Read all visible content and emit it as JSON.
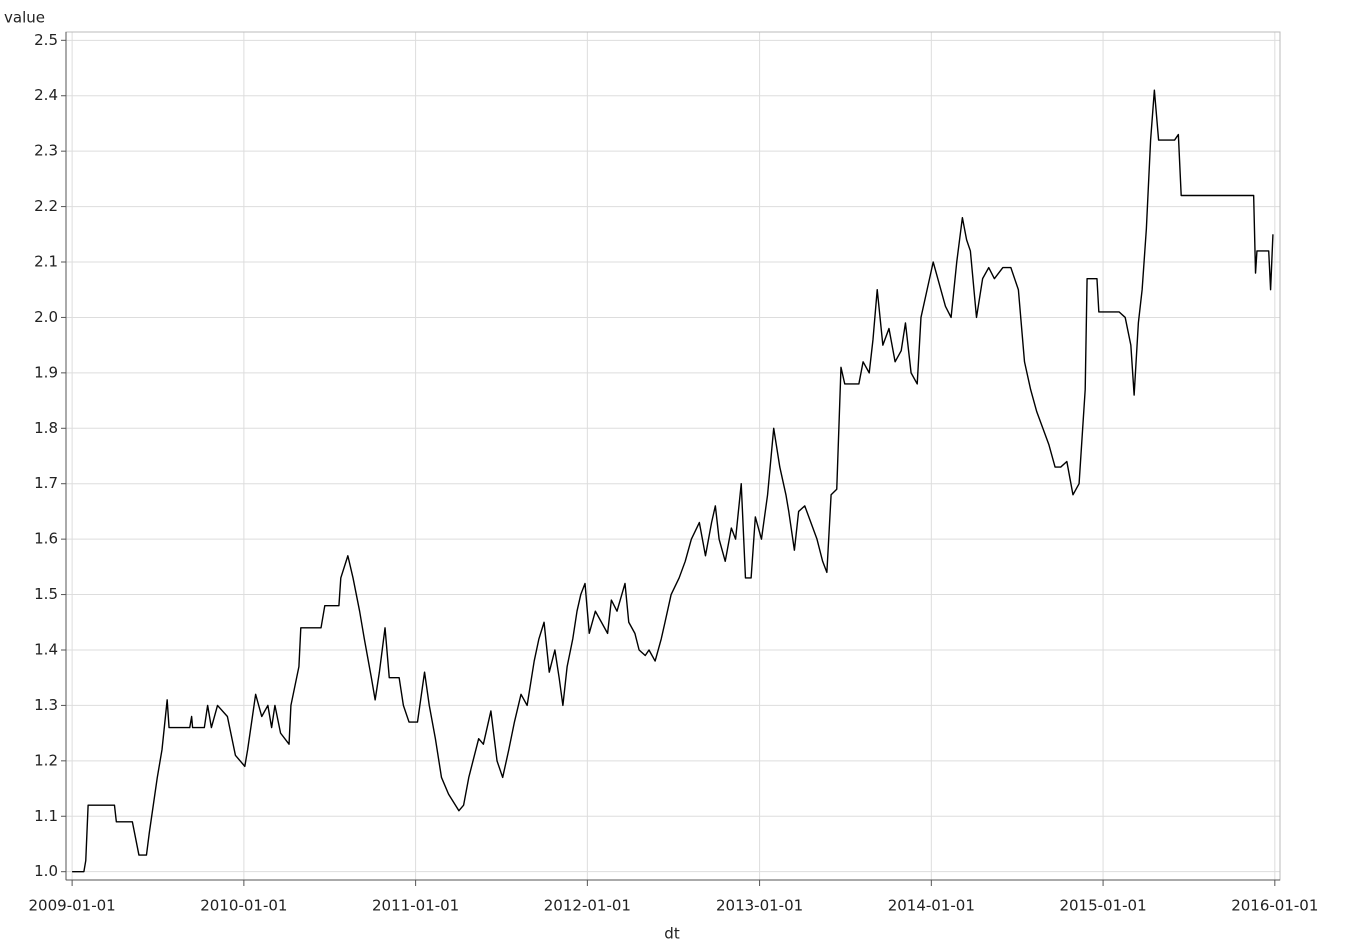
{
  "chart_data": {
    "type": "line",
    "y_label": "value",
    "x_label": "dt",
    "color": "#000000",
    "grid": true,
    "xlim": [
      "2008-12-19",
      "2016-01-12"
    ],
    "xticks": [
      "2009-01-01",
      "2010-01-01",
      "2011-01-01",
      "2012-01-01",
      "2013-01-01",
      "2014-01-01",
      "2015-01-01",
      "2016-01-01"
    ],
    "ylim": [
      0.985,
      2.515
    ],
    "yticks": [
      {
        "value": 1,
        "label": "1.0"
      },
      1.1,
      1.2,
      1.3,
      1.4,
      1.5,
      1.6,
      1.7,
      1.8,
      1.9,
      {
        "value": 2,
        "label": "2.0"
      },
      2.1,
      2.2,
      2.3,
      2.4,
      2.5
    ],
    "x": [
      "2009-01-01",
      "2009-01-26",
      "2009-01-30",
      "2009-02-04",
      "2009-04-01",
      "2009-04-05",
      "2009-05-09",
      "2009-05-23",
      "2009-06-08",
      "2009-06-14",
      "2009-07-01",
      "2009-07-11",
      "2009-07-22",
      "2009-07-26",
      "2009-09-08",
      "2009-09-12",
      "2009-09-14",
      "2009-10-09",
      "2009-10-16",
      "2009-10-24",
      "2009-11-06",
      "2009-11-27",
      "2009-12-14",
      "2010-01-03",
      "2010-01-09",
      "2010-01-26",
      "2010-02-08",
      "2010-02-21",
      "2010-03-01",
      "2010-03-08",
      "2010-03-20",
      "2010-04-07",
      "2010-04-11",
      "2010-04-28",
      "2010-05-02",
      "2010-06-14",
      "2010-06-22",
      "2010-07-22",
      "2010-07-26",
      "2010-08-10",
      "2010-08-21",
      "2010-09-04",
      "2010-09-14",
      "2010-09-29",
      "2010-10-07",
      "2010-10-16",
      "2010-10-28",
      "2010-11-06",
      "2010-11-27",
      "2010-12-06",
      "2010-12-18",
      "2011-01-05",
      "2011-01-20",
      "2011-01-30",
      "2011-02-12",
      "2011-02-25",
      "2011-03-12",
      "2011-04-03",
      "2011-04-13",
      "2011-04-24",
      "2011-05-15",
      "2011-05-25",
      "2011-06-10",
      "2011-06-23",
      "2011-07-05",
      "2011-07-18",
      "2011-07-30",
      "2011-08-13",
      "2011-08-26",
      "2011-09-10",
      "2011-09-20",
      "2011-10-01",
      "2011-10-12",
      "2011-10-24",
      "2011-11-02",
      "2011-11-10",
      "2011-11-19",
      "2011-12-01",
      "2011-12-10",
      "2011-12-18",
      "2011-12-27",
      "2012-01-05",
      "2012-01-18",
      "2012-02-13",
      "2012-02-21",
      "2012-03-04",
      "2012-03-21",
      "2012-03-29",
      "2012-04-11",
      "2012-04-20",
      "2012-05-03",
      "2012-05-11",
      "2012-05-24",
      "2012-06-06",
      "2012-06-14",
      "2012-06-27",
      "2012-07-14",
      "2012-07-27",
      "2012-08-09",
      "2012-08-26",
      "2012-09-08",
      "2012-09-21",
      "2012-09-29",
      "2012-10-07",
      "2012-10-20",
      "2012-11-02",
      "2012-11-11",
      "2012-11-23",
      "2012-12-02",
      "2012-12-14",
      "2012-12-23",
      "2013-01-05",
      "2013-01-18",
      "2013-01-31",
      "2013-02-13",
      "2013-02-26",
      "2013-03-04",
      "2013-03-16",
      "2013-03-25",
      "2013-04-07",
      "2013-04-20",
      "2013-05-03",
      "2013-05-15",
      "2013-05-24",
      "2013-06-02",
      "2013-06-14",
      "2013-06-23",
      "2013-07-01",
      "2013-07-31",
      "2013-08-09",
      "2013-08-22",
      "2013-08-30",
      "2013-09-08",
      "2013-09-20",
      "2013-10-03",
      "2013-10-16",
      "2013-10-29",
      "2013-11-07",
      "2013-11-19",
      "2013-12-02",
      "2013-12-10",
      "2013-12-23",
      "2014-01-05",
      "2014-01-18",
      "2014-01-31",
      "2014-02-12",
      "2014-02-24",
      "2014-03-08",
      "2014-03-17",
      "2014-03-25",
      "2014-04-07",
      "2014-04-20",
      "2014-05-03",
      "2014-05-15",
      "2014-06-02",
      "2014-06-19",
      "2014-07-05",
      "2014-07-18",
      "2014-07-31",
      "2014-08-13",
      "2014-08-26",
      "2014-09-08",
      "2014-09-21",
      "2014-10-03",
      "2014-10-16",
      "2014-10-29",
      "2014-11-11",
      "2014-11-24",
      "2014-11-28",
      "2014-12-19",
      "2014-12-23",
      "2015-02-04",
      "2015-02-17",
      "2015-03-01",
      "2015-03-08",
      "2015-03-17",
      "2015-03-25",
      "2015-04-03",
      "2015-04-12",
      "2015-04-20",
      "2015-04-29",
      "2015-06-02",
      "2015-06-10",
      "2015-06-16",
      "2015-11-17",
      "2015-11-21",
      "2015-11-24",
      "2015-12-19",
      "2015-12-23",
      "2015-12-28"
    ],
    "values": [
      1.0,
      1.0,
      1.02,
      1.12,
      1.12,
      1.09,
      1.09,
      1.03,
      1.03,
      1.07,
      1.17,
      1.22,
      1.31,
      1.26,
      1.26,
      1.28,
      1.26,
      1.26,
      1.3,
      1.26,
      1.3,
      1.28,
      1.21,
      1.19,
      1.22,
      1.32,
      1.28,
      1.3,
      1.26,
      1.3,
      1.25,
      1.23,
      1.3,
      1.37,
      1.44,
      1.44,
      1.48,
      1.48,
      1.53,
      1.57,
      1.53,
      1.47,
      1.42,
      1.35,
      1.31,
      1.36,
      1.44,
      1.35,
      1.35,
      1.3,
      1.27,
      1.27,
      1.36,
      1.3,
      1.24,
      1.17,
      1.14,
      1.11,
      1.12,
      1.17,
      1.24,
      1.23,
      1.29,
      1.2,
      1.17,
      1.22,
      1.27,
      1.32,
      1.3,
      1.38,
      1.42,
      1.45,
      1.36,
      1.4,
      1.35,
      1.3,
      1.37,
      1.42,
      1.47,
      1.5,
      1.52,
      1.43,
      1.47,
      1.43,
      1.49,
      1.47,
      1.52,
      1.45,
      1.43,
      1.4,
      1.39,
      1.4,
      1.38,
      1.42,
      1.45,
      1.5,
      1.53,
      1.56,
      1.6,
      1.63,
      1.57,
      1.63,
      1.66,
      1.6,
      1.56,
      1.62,
      1.6,
      1.7,
      1.53,
      1.53,
      1.64,
      1.6,
      1.68,
      1.8,
      1.73,
      1.68,
      1.65,
      1.58,
      1.65,
      1.66,
      1.63,
      1.6,
      1.56,
      1.54,
      1.68,
      1.69,
      1.91,
      1.88,
      1.88,
      1.92,
      1.9,
      1.96,
      2.05,
      1.95,
      1.98,
      1.92,
      1.94,
      1.99,
      1.9,
      1.88,
      2.0,
      2.05,
      2.1,
      2.06,
      2.02,
      2.0,
      2.1,
      2.18,
      2.14,
      2.12,
      2.0,
      2.07,
      2.09,
      2.07,
      2.09,
      2.09,
      2.05,
      1.92,
      1.87,
      1.83,
      1.8,
      1.77,
      1.73,
      1.73,
      1.74,
      1.68,
      1.7,
      1.87,
      2.07,
      2.07,
      2.01,
      2.01,
      2.0,
      1.95,
      1.86,
      1.99,
      2.05,
      2.16,
      2.32,
      2.41,
      2.32,
      2.32,
      2.33,
      2.22,
      2.22,
      2.08,
      2.12,
      2.12,
      2.05,
      2.15
    ]
  }
}
